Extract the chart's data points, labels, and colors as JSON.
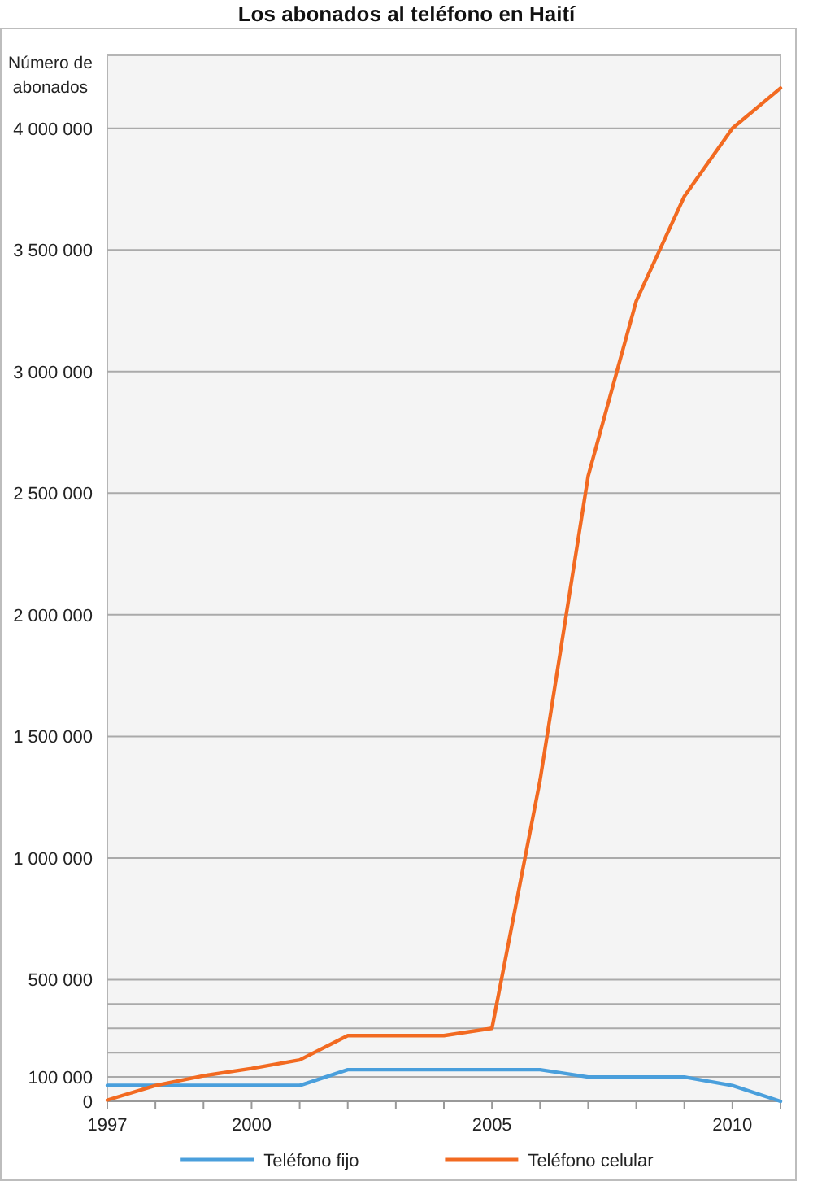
{
  "chart_data": {
    "type": "line",
    "title": "Los abonados al teléfono en Haití",
    "ylabel": "Número de abonados",
    "x": [
      1997,
      1998,
      1999,
      2000,
      2001,
      2002,
      2003,
      2004,
      2005,
      2006,
      2007,
      2008,
      2009,
      2010,
      2011
    ],
    "series": [
      {
        "name": "Teléfono fijo",
        "color": "#4a9fdc",
        "values": [
          65000,
          65000,
          65000,
          65000,
          65000,
          130000,
          130000,
          130000,
          130000,
          130000,
          100000,
          100000,
          100000,
          65000,
          0
        ]
      },
      {
        "name": "Teléfono celular",
        "color": "#f26a21",
        "values": [
          5000,
          65000,
          105000,
          135000,
          170000,
          270000,
          270000,
          270000,
          300000,
          1320000,
          2570000,
          3290000,
          3720000,
          4000000,
          4165000
        ]
      }
    ],
    "xlim": [
      1997,
      2011
    ],
    "xticks": [
      1997,
      {
        "value": 1998,
        "label": null
      },
      {
        "value": 1999,
        "label": null
      },
      2000,
      {
        "value": 2001,
        "label": null
      },
      {
        "value": 2002,
        "label": null
      },
      {
        "value": 2003,
        "label": null
      },
      {
        "value": 2004,
        "label": null
      },
      2005,
      {
        "value": 2006,
        "label": null
      },
      {
        "value": 2007,
        "label": null
      },
      {
        "value": 2008,
        "label": null
      },
      {
        "value": 2009,
        "label": null
      },
      2010,
      {
        "value": 2011,
        "label": null
      }
    ],
    "ylim": [
      0,
      4300000
    ],
    "yticks": [
      0,
      {
        "value": 100000,
        "label": "100 000"
      },
      {
        "value": 200000,
        "label": null
      },
      {
        "value": 300000,
        "label": null
      },
      {
        "value": 400000,
        "label": null
      },
      {
        "value": 500000,
        "label": "500 000"
      },
      {
        "value": 1000000,
        "label": "1 000 000"
      },
      {
        "value": 1500000,
        "label": "1 500 000"
      },
      {
        "value": 2000000,
        "label": "2 000 000"
      },
      {
        "value": 2500000,
        "label": "2 500 000"
      },
      {
        "value": 3000000,
        "label": "3 000 000"
      },
      {
        "value": 3500000,
        "label": "3 500 000"
      },
      {
        "value": 4000000,
        "label": "4 000 000"
      }
    ],
    "grid": "y",
    "legend": "bottom",
    "marker": "none",
    "line_style": "solid"
  }
}
